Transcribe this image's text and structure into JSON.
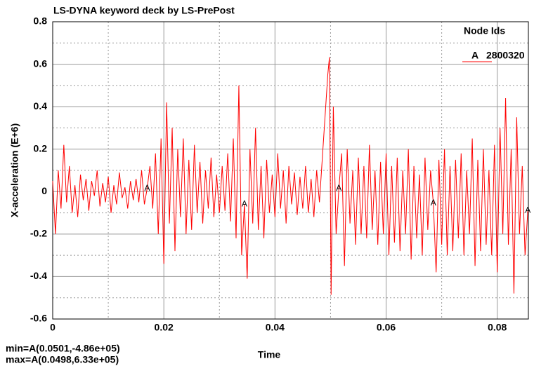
{
  "chart_data": {
    "type": "line",
    "title": "LS-DYNA keyword deck by LS-PrePost",
    "x_label": "Time",
    "y_label": "X-acceleration (E+6)",
    "legend_title": "Node Ids",
    "footer": [
      "min=A(0.0501,-4.86e+05)",
      "max=A(0.0498,6.33e+05)"
    ],
    "xlim": [
      0,
      0.0856
    ],
    "ylim": [
      -0.6,
      0.8
    ],
    "xticks": [
      0,
      0.02,
      0.04,
      0.06,
      0.08
    ],
    "yticks": [
      -0.6,
      -0.4,
      -0.2,
      0,
      0.2,
      0.4,
      0.6,
      0.8
    ],
    "xminorticks": [
      0.01,
      0.03,
      0.05,
      0.07
    ],
    "yminorticks": [
      -0.5,
      -0.3,
      -0.1,
      0.1,
      0.3,
      0.5,
      0.7
    ],
    "grid": true,
    "x": [
      0,
      0.0005,
      0.001,
      0.0015,
      0.002,
      0.0025,
      0.003,
      0.0035,
      0.004,
      0.0045,
      0.005,
      0.0055,
      0.006,
      0.0065,
      0.007,
      0.0075,
      0.008,
      0.0085,
      0.009,
      0.0095,
      0.01,
      0.0105,
      0.011,
      0.0115,
      0.012,
      0.0125,
      0.013,
      0.0135,
      0.014,
      0.0145,
      0.015,
      0.0155,
      0.016,
      0.0165,
      0.017,
      0.0175,
      0.018,
      0.0185,
      0.019,
      0.0195,
      0.02,
      0.0205,
      0.021,
      0.0215,
      0.022,
      0.0225,
      0.023,
      0.0235,
      0.024,
      0.0245,
      0.025,
      0.0255,
      0.026,
      0.0265,
      0.027,
      0.0275,
      0.028,
      0.0285,
      0.029,
      0.0295,
      0.03,
      0.0305,
      0.031,
      0.0315,
      0.032,
      0.0325,
      0.033,
      0.0335,
      0.034,
      0.0345,
      0.035,
      0.0355,
      0.036,
      0.0365,
      0.037,
      0.0375,
      0.038,
      0.0385,
      0.039,
      0.0395,
      0.04,
      0.0405,
      0.041,
      0.0415,
      0.042,
      0.0425,
      0.043,
      0.0435,
      0.044,
      0.0445,
      0.045,
      0.0455,
      0.046,
      0.0465,
      0.047,
      0.0475,
      0.048,
      0.0485,
      0.049,
      0.0495,
      0.0498,
      0.0501,
      0.0505,
      0.051,
      0.0515,
      0.052,
      0.0525,
      0.053,
      0.0535,
      0.054,
      0.0545,
      0.055,
      0.0555,
      0.056,
      0.0565,
      0.057,
      0.0575,
      0.058,
      0.0585,
      0.059,
      0.0595,
      0.06,
      0.0605,
      0.061,
      0.0615,
      0.062,
      0.0625,
      0.063,
      0.0635,
      0.064,
      0.0645,
      0.065,
      0.0655,
      0.066,
      0.0665,
      0.067,
      0.0675,
      0.068,
      0.0685,
      0.069,
      0.0695,
      0.07,
      0.0705,
      0.071,
      0.0715,
      0.072,
      0.0725,
      0.073,
      0.0735,
      0.074,
      0.0745,
      0.075,
      0.0755,
      0.076,
      0.0765,
      0.077,
      0.0775,
      0.078,
      0.0785,
      0.079,
      0.0795,
      0.08,
      0.0805,
      0.081,
      0.0815,
      0.082,
      0.0825,
      0.083,
      0.0835,
      0.084,
      0.0845,
      0.085,
      0.0855
    ],
    "series": [
      {
        "name": "2800320",
        "marker": "A",
        "marker_indices": [
          34,
          69,
          104,
          138,
          172
        ],
        "color": "#ff0000",
        "values": [
          0.05,
          -0.2,
          0.1,
          -0.08,
          0.22,
          -0.05,
          0.12,
          -0.1,
          0.03,
          -0.12,
          0.08,
          -0.04,
          0.06,
          -0.09,
          0.05,
          -0.02,
          0.1,
          -0.07,
          0.04,
          -0.05,
          0.07,
          -0.1,
          0.03,
          -0.06,
          0.09,
          -0.03,
          0.02,
          -0.08,
          0.05,
          -0.04,
          0.06,
          -0.05,
          0.1,
          -0.06,
          0.015,
          0.12,
          -0.08,
          0.18,
          -0.2,
          0.25,
          -0.34,
          0.42,
          -0.15,
          0.3,
          -0.28,
          0.2,
          -0.12,
          0.25,
          -0.2,
          0.15,
          -0.18,
          0.22,
          -0.1,
          0.14,
          -0.15,
          0.1,
          -0.08,
          0.16,
          -0.12,
          0.08,
          -0.1,
          0.12,
          -0.09,
          0.18,
          -0.14,
          0.25,
          -0.22,
          0.5,
          -0.3,
          -0.06,
          -0.41,
          0.2,
          -0.15,
          0.3,
          -0.18,
          0.12,
          -0.22,
          0.15,
          -0.1,
          0.08,
          -0.12,
          0.18,
          -0.08,
          0.1,
          -0.15,
          0.12,
          -0.06,
          0.09,
          -0.11,
          0.07,
          -0.08,
          0.12,
          -0.1,
          0.06,
          -0.12,
          0.1,
          -0.05,
          0.15,
          0.35,
          0.55,
          0.633,
          -0.486,
          0.4,
          -0.2,
          0.015,
          0.18,
          -0.35,
          0.2,
          -0.15,
          0.1,
          -0.25,
          0.16,
          -0.2,
          0.12,
          -0.22,
          0.22,
          -0.18,
          0.1,
          -0.25,
          0.14,
          -0.2,
          0.18,
          -0.3,
          0.12,
          -0.24,
          0.16,
          -0.28,
          0.1,
          -0.2,
          0.2,
          -0.32,
          0.12,
          -0.22,
          0.08,
          -0.3,
          0.16,
          -0.18,
          0.1,
          -0.055,
          -0.38,
          0.15,
          -0.25,
          0.2,
          -0.3,
          0.12,
          -0.28,
          0.15,
          -0.22,
          0.18,
          -0.3,
          0.1,
          -0.2,
          0.25,
          -0.35,
          0.15,
          -0.28,
          0.2,
          -0.25,
          0.1,
          -0.3,
          0.22,
          -0.38,
          0.3,
          -0.2,
          0.44,
          -0.25,
          0.2,
          -0.48,
          0.35,
          -0.2,
          0.12,
          -0.3,
          -0.09
        ]
      }
    ]
  }
}
